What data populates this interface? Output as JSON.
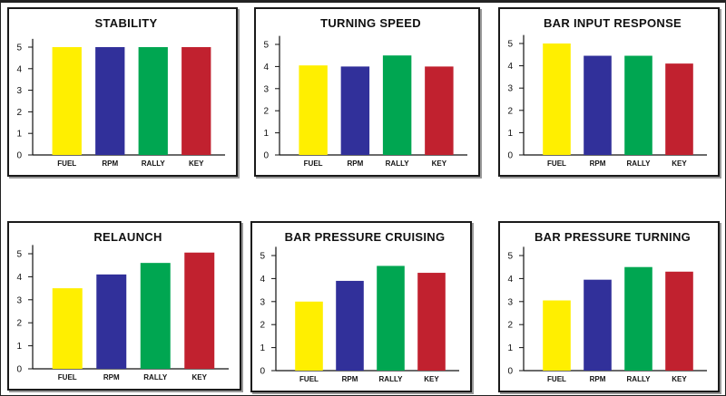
{
  "colors": {
    "FUEL": "#ffef00",
    "RPM": "#31309a",
    "RALLY": "#00a651",
    "KEY": "#c1212f"
  },
  "chart_data": [
    {
      "type": "bar",
      "title": "STABILITY",
      "categories": [
        "FUEL",
        "RPM",
        "RALLY",
        "KEY"
      ],
      "values": [
        5.0,
        5.0,
        5.0,
        5.0
      ],
      "yticks": [
        "0",
        "1",
        "2",
        "3",
        "4",
        "5"
      ],
      "ylim": [
        0,
        5.3
      ],
      "grid": false
    },
    {
      "type": "bar",
      "title": "TURNING SPEED",
      "categories": [
        "FUEL",
        "RPM",
        "RALLY",
        "KEY"
      ],
      "values": [
        4.05,
        4.0,
        4.5,
        4.0
      ],
      "yticks": [
        "0",
        "1",
        "2",
        "3",
        "4",
        "5"
      ],
      "ylim": [
        0,
        5.3
      ],
      "grid": false
    },
    {
      "type": "bar",
      "title": "BAR INPUT RESPONSE",
      "categories": [
        "FUEL",
        "RPM",
        "RALLY",
        "KEY"
      ],
      "values": [
        5.0,
        4.45,
        4.45,
        4.1
      ],
      "yticks": [
        "0",
        "1",
        "2",
        "3",
        "4",
        "5"
      ],
      "ylim": [
        0,
        5.3
      ],
      "grid": false
    },
    {
      "type": "bar",
      "title": "RELAUNCH",
      "categories": [
        "FUEL",
        "RPM",
        "RALLY",
        "KEY"
      ],
      "values": [
        3.5,
        4.1,
        4.6,
        5.05
      ],
      "yticks": [
        "0",
        "1",
        "2",
        "3",
        "4",
        "5"
      ],
      "ylim": [
        0,
        5.3
      ],
      "grid": false
    },
    {
      "type": "bar",
      "title": "BAR PRESSURE CRUISING",
      "categories": [
        "FUEL",
        "RPM",
        "RALLY",
        "KEY"
      ],
      "values": [
        3.0,
        3.9,
        4.55,
        4.25
      ],
      "yticks": [
        "0",
        "1",
        "2",
        "3",
        "4",
        "5"
      ],
      "ylim": [
        0,
        5.3
      ],
      "grid": false
    },
    {
      "type": "bar",
      "title": "BAR PRESSURE TURNING",
      "categories": [
        "FUEL",
        "RPM",
        "RALLY",
        "KEY"
      ],
      "values": [
        3.05,
        3.95,
        4.5,
        4.3
      ],
      "yticks": [
        "0",
        "1",
        "2",
        "3",
        "4",
        "5"
      ],
      "ylim": [
        0,
        5.3
      ],
      "grid": false
    }
  ]
}
